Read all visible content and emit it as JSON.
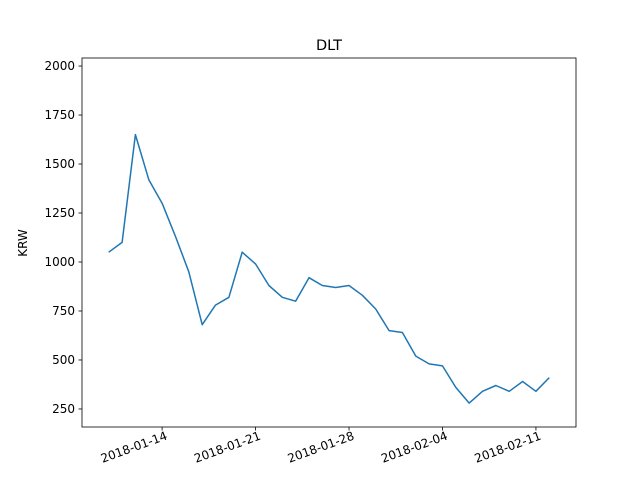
{
  "chart_data": {
    "type": "line",
    "title": "DLT",
    "y_label": "KRW",
    "x": [
      "2018-01-10",
      "2018-01-11",
      "2018-01-12",
      "2018-01-13",
      "2018-01-14",
      "2018-01-15",
      "2018-01-16",
      "2018-01-17",
      "2018-01-18",
      "2018-01-19",
      "2018-01-20",
      "2018-01-21",
      "2018-01-22",
      "2018-01-23",
      "2018-01-24",
      "2018-01-25",
      "2018-01-26",
      "2018-01-27",
      "2018-01-28",
      "2018-01-29",
      "2018-01-30",
      "2018-01-31",
      "2018-02-01",
      "2018-02-02",
      "2018-02-03",
      "2018-02-04",
      "2018-02-05",
      "2018-02-06",
      "2018-02-07",
      "2018-02-08",
      "2018-02-09",
      "2018-02-10",
      "2018-02-11",
      "2018-02-12"
    ],
    "series": [
      {
        "name": "DLT",
        "color": "#1f77b4",
        "values": [
          1050,
          1100,
          1650,
          1420,
          1300,
          1130,
          950,
          680,
          780,
          820,
          1050,
          990,
          880,
          820,
          800,
          920,
          880,
          870,
          880,
          830,
          760,
          650,
          640,
          520,
          480,
          470,
          360,
          280,
          340,
          370,
          340,
          390,
          340,
          410
        ]
      }
    ],
    "xlim": [
      "2018-01-08",
      "2018-02-14"
    ],
    "xticks": [
      "2018-01-14",
      "2018-01-21",
      "2018-01-28",
      "2018-02-04",
      "2018-02-11"
    ],
    "ylim": [
      158,
      2041
    ],
    "yticks": [
      250,
      500,
      750,
      1000,
      1250,
      1500,
      1750,
      2000
    ],
    "grid": false
  }
}
